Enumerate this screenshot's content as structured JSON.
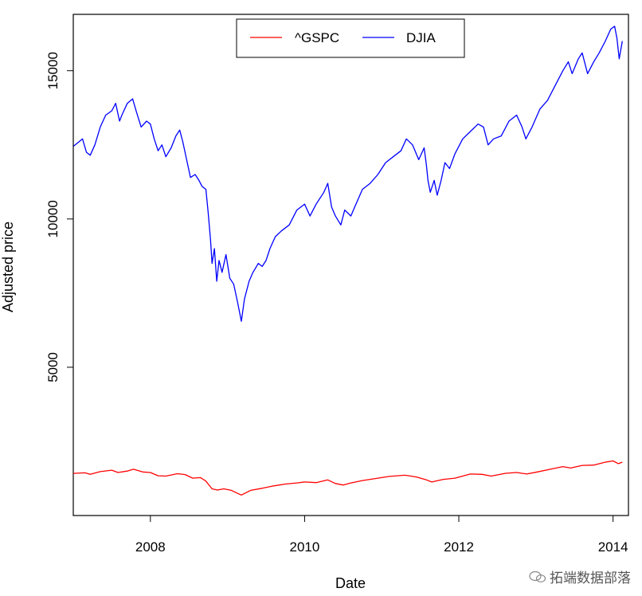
{
  "chart_data": {
    "type": "line",
    "xlabel": "Date",
    "ylabel": "Adjusted price",
    "xlim": [
      2007.0,
      2014.2
    ],
    "ylim": [
      0,
      16900
    ],
    "x_ticks": [
      2008,
      2010,
      2012,
      2014
    ],
    "x_tick_labels": [
      "2008",
      "2010",
      "2012",
      "2014"
    ],
    "y_ticks": [
      5000,
      10000,
      15000
    ],
    "y_tick_labels": [
      "5000",
      "10000",
      "15000"
    ],
    "legend": {
      "placement": "top",
      "entries": [
        "^GSPC",
        "DJIA"
      ]
    },
    "series": [
      {
        "name": "^GSPC",
        "color": "#ff0000",
        "points": [
          [
            2007.0,
            1420
          ],
          [
            2007.15,
            1440
          ],
          [
            2007.22,
            1390
          ],
          [
            2007.35,
            1480
          ],
          [
            2007.5,
            1530
          ],
          [
            2007.58,
            1450
          ],
          [
            2007.7,
            1500
          ],
          [
            2007.78,
            1560
          ],
          [
            2007.9,
            1470
          ],
          [
            2008.0,
            1450
          ],
          [
            2008.1,
            1340
          ],
          [
            2008.2,
            1330
          ],
          [
            2008.35,
            1410
          ],
          [
            2008.45,
            1380
          ],
          [
            2008.55,
            1260
          ],
          [
            2008.65,
            1280
          ],
          [
            2008.72,
            1160
          ],
          [
            2008.8,
            900
          ],
          [
            2008.87,
            860
          ],
          [
            2008.95,
            900
          ],
          [
            2009.05,
            850
          ],
          [
            2009.12,
            760
          ],
          [
            2009.18,
            690
          ],
          [
            2009.3,
            850
          ],
          [
            2009.45,
            920
          ],
          [
            2009.6,
            1000
          ],
          [
            2009.75,
            1060
          ],
          [
            2009.9,
            1100
          ],
          [
            2010.0,
            1130
          ],
          [
            2010.15,
            1110
          ],
          [
            2010.3,
            1200
          ],
          [
            2010.4,
            1080
          ],
          [
            2010.5,
            1030
          ],
          [
            2010.6,
            1100
          ],
          [
            2010.75,
            1180
          ],
          [
            2010.95,
            1260
          ],
          [
            2011.1,
            1320
          ],
          [
            2011.3,
            1360
          ],
          [
            2011.45,
            1300
          ],
          [
            2011.58,
            1200
          ],
          [
            2011.65,
            1130
          ],
          [
            2011.8,
            1220
          ],
          [
            2011.95,
            1260
          ],
          [
            2012.15,
            1400
          ],
          [
            2012.3,
            1390
          ],
          [
            2012.42,
            1330
          ],
          [
            2012.6,
            1420
          ],
          [
            2012.75,
            1450
          ],
          [
            2012.88,
            1400
          ],
          [
            2013.0,
            1460
          ],
          [
            2013.2,
            1570
          ],
          [
            2013.35,
            1650
          ],
          [
            2013.45,
            1600
          ],
          [
            2013.6,
            1690
          ],
          [
            2013.75,
            1700
          ],
          [
            2013.9,
            1800
          ],
          [
            2014.0,
            1840
          ],
          [
            2014.07,
            1750
          ],
          [
            2014.12,
            1800
          ]
        ]
      },
      {
        "name": "DJIA",
        "color": "#0000ff",
        "points": [
          [
            2007.0,
            12450
          ],
          [
            2007.05,
            12550
          ],
          [
            2007.12,
            12700
          ],
          [
            2007.17,
            12250
          ],
          [
            2007.22,
            12150
          ],
          [
            2007.28,
            12500
          ],
          [
            2007.35,
            13100
          ],
          [
            2007.42,
            13500
          ],
          [
            2007.5,
            13650
          ],
          [
            2007.55,
            13900
          ],
          [
            2007.6,
            13300
          ],
          [
            2007.63,
            13500
          ],
          [
            2007.7,
            13900
          ],
          [
            2007.77,
            14050
          ],
          [
            2007.82,
            13600
          ],
          [
            2007.88,
            13100
          ],
          [
            2007.95,
            13300
          ],
          [
            2008.0,
            13200
          ],
          [
            2008.05,
            12700
          ],
          [
            2008.1,
            12300
          ],
          [
            2008.15,
            12500
          ],
          [
            2008.2,
            12100
          ],
          [
            2008.27,
            12400
          ],
          [
            2008.33,
            12800
          ],
          [
            2008.38,
            13000
          ],
          [
            2008.42,
            12600
          ],
          [
            2008.47,
            12000
          ],
          [
            2008.52,
            11400
          ],
          [
            2008.58,
            11500
          ],
          [
            2008.63,
            11300
          ],
          [
            2008.67,
            11100
          ],
          [
            2008.72,
            11000
          ],
          [
            2008.75,
            10200
          ],
          [
            2008.78,
            9300
          ],
          [
            2008.8,
            8500
          ],
          [
            2008.83,
            9000
          ],
          [
            2008.86,
            7900
          ],
          [
            2008.89,
            8600
          ],
          [
            2008.93,
            8200
          ],
          [
            2008.98,
            8800
          ],
          [
            2009.03,
            8000
          ],
          [
            2009.08,
            7800
          ],
          [
            2009.13,
            7200
          ],
          [
            2009.18,
            6550
          ],
          [
            2009.22,
            7300
          ],
          [
            2009.28,
            7900
          ],
          [
            2009.33,
            8200
          ],
          [
            2009.4,
            8500
          ],
          [
            2009.45,
            8400
          ],
          [
            2009.5,
            8600
          ],
          [
            2009.55,
            9000
          ],
          [
            2009.62,
            9400
          ],
          [
            2009.7,
            9600
          ],
          [
            2009.8,
            9800
          ],
          [
            2009.9,
            10300
          ],
          [
            2010.0,
            10500
          ],
          [
            2010.07,
            10100
          ],
          [
            2010.15,
            10500
          ],
          [
            2010.25,
            10900
          ],
          [
            2010.3,
            11200
          ],
          [
            2010.35,
            10400
          ],
          [
            2010.4,
            10100
          ],
          [
            2010.47,
            9800
          ],
          [
            2010.52,
            10300
          ],
          [
            2010.6,
            10100
          ],
          [
            2010.65,
            10400
          ],
          [
            2010.75,
            11000
          ],
          [
            2010.85,
            11200
          ],
          [
            2010.95,
            11500
          ],
          [
            2011.05,
            11900
          ],
          [
            2011.15,
            12100
          ],
          [
            2011.25,
            12300
          ],
          [
            2011.32,
            12700
          ],
          [
            2011.4,
            12500
          ],
          [
            2011.48,
            12000
          ],
          [
            2011.55,
            12400
          ],
          [
            2011.58,
            11800
          ],
          [
            2011.6,
            11300
          ],
          [
            2011.63,
            10900
          ],
          [
            2011.68,
            11300
          ],
          [
            2011.72,
            10800
          ],
          [
            2011.77,
            11300
          ],
          [
            2011.82,
            11900
          ],
          [
            2011.88,
            11700
          ],
          [
            2011.95,
            12200
          ],
          [
            2012.05,
            12700
          ],
          [
            2012.15,
            12950
          ],
          [
            2012.25,
            13200
          ],
          [
            2012.32,
            13100
          ],
          [
            2012.38,
            12500
          ],
          [
            2012.45,
            12700
          ],
          [
            2012.55,
            12800
          ],
          [
            2012.65,
            13300
          ],
          [
            2012.75,
            13500
          ],
          [
            2012.82,
            13100
          ],
          [
            2012.87,
            12700
          ],
          [
            2012.95,
            13100
          ],
          [
            2013.05,
            13700
          ],
          [
            2013.15,
            14000
          ],
          [
            2013.25,
            14500
          ],
          [
            2013.35,
            15000
          ],
          [
            2013.42,
            15300
          ],
          [
            2013.47,
            14900
          ],
          [
            2013.55,
            15400
          ],
          [
            2013.6,
            15600
          ],
          [
            2013.67,
            14900
          ],
          [
            2013.75,
            15300
          ],
          [
            2013.82,
            15600
          ],
          [
            2013.9,
            16000
          ],
          [
            2013.97,
            16400
          ],
          [
            2014.02,
            16500
          ],
          [
            2014.05,
            16100
          ],
          [
            2014.08,
            15400
          ],
          [
            2014.12,
            16000
          ]
        ]
      }
    ]
  },
  "watermark": {
    "text": "拓端数据部落",
    "icon": "wechat-icon"
  }
}
